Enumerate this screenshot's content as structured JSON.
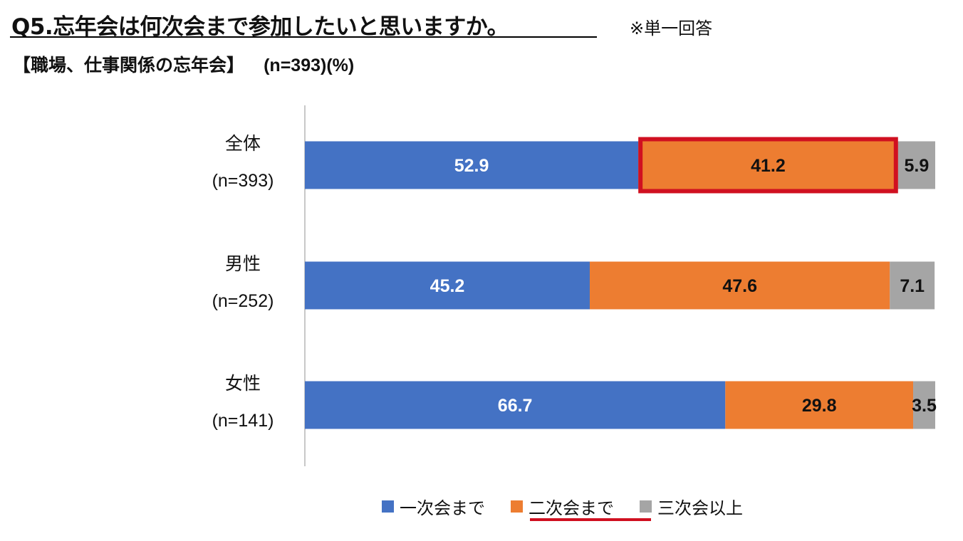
{
  "header": {
    "question": "Q5.忘年会は何次会まで参加したいと思いますか。",
    "note": "※単一回答",
    "subtitle": "【職場、仕事関係の忘年会】",
    "sample": "(n=393)(%)"
  },
  "chart_data": {
    "type": "bar",
    "orientation": "horizontal",
    "stacked": true,
    "title": "Q5.忘年会は何次会まで参加したいと思いますか。",
    "subtitle": "【職場、仕事関係の忘年会】",
    "categories": [
      {
        "label": "全体",
        "n": "(n=393)"
      },
      {
        "label": "男性",
        "n": "(n=252)"
      },
      {
        "label": "女性",
        "n": "(n=141)"
      }
    ],
    "series": [
      {
        "name": "一次会まで",
        "color": "#4472c4",
        "label_color": "#ffffff",
        "values": [
          52.9,
          45.2,
          66.7
        ]
      },
      {
        "name": "二次会まで",
        "color": "#ed7d31",
        "label_color": "#111111",
        "values": [
          41.2,
          47.6,
          29.8
        ]
      },
      {
        "name": "三次会以上",
        "color": "#a5a5a5",
        "label_color": "#111111",
        "values": [
          5.9,
          7.1,
          3.5
        ]
      }
    ],
    "xlim": [
      0,
      100
    ],
    "legend_position": "bottom",
    "highlight": {
      "series": 1,
      "category": 0,
      "color": "#d01020"
    },
    "legend_highlight": {
      "series": 1,
      "color": "#d01020"
    }
  }
}
